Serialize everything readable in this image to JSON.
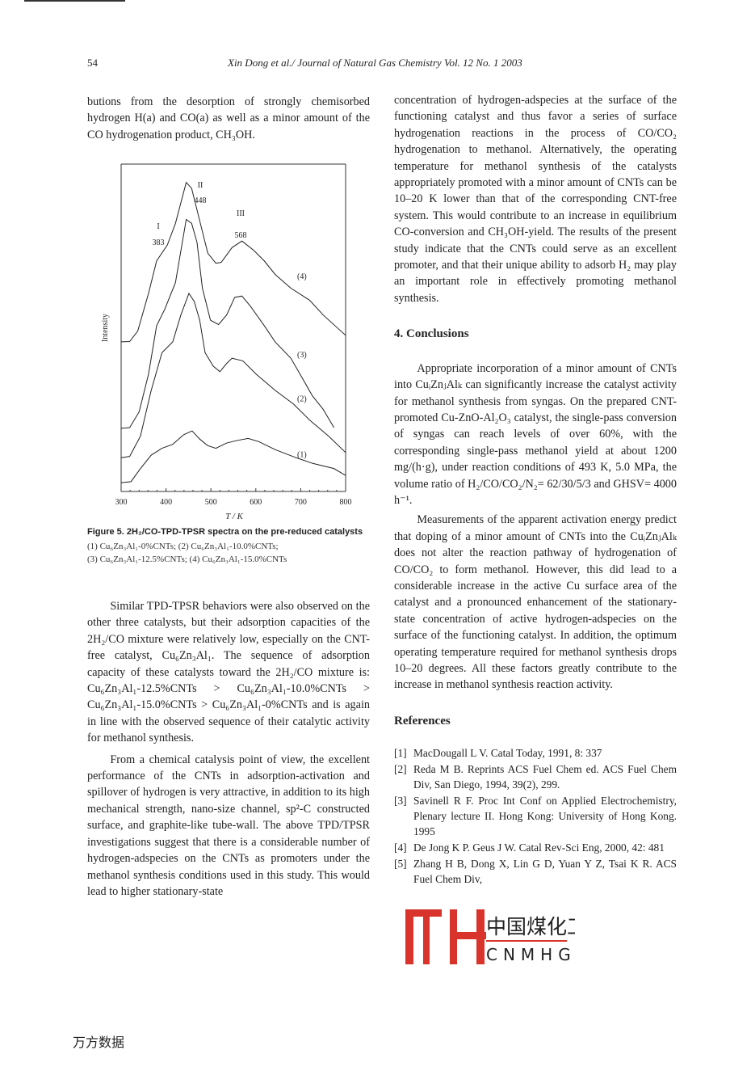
{
  "header": {
    "page_number": "54",
    "running_title": "Xin Dong et al./ Journal of Natural Gas Chemistry Vol. 12 No. 1 2003"
  },
  "left": {
    "p0": "butions from the desorption of strongly chemisorbed hydrogen H(a) and CO(a) as well as a minor amount of the CO hydrogenation product, CH₃OH.",
    "figure_caption": "Figure 5. 2H₂/CO-TPD-TPSR spectra on the pre-reduced catalysts",
    "figure_subcaption_1": "(1) Cu₆Zn₃Al₁-0%CNTs; (2) Cu₆Zn₃Al₁-10.0%CNTs;",
    "figure_subcaption_2": "(3) Cu₆Zn₃Al₁-12.5%CNTs; (4) Cu₆Zn₃Al₁-15.0%CNTs",
    "p1": "Similar TPD-TPSR behaviors were also observed on the other three catalysts, but their adsorption capacities of the 2H₂/CO mixture were relatively low, especially on the CNT-free catalyst, Cu₆Zn₃Al₁. The sequence of adsorption capacity of these catalysts toward the 2H₂/CO mixture is: Cu₆Zn₃Al₁-12.5%CNTs > Cu₆Zn₃Al₁-10.0%CNTs > Cu₆Zn₃Al₁-15.0%CNTs > Cu₆Zn₃Al₁-0%CNTs and is again in line with the observed sequence of their catalytic activity for methanol synthesis.",
    "p2": "From a chemical catalysis point of view, the excellent performance of the CNTs in adsorption-activation and spillover of hydrogen is very attractive, in addition to its high mechanical strength, nano-size channel, sp²-C constructed surface, and graphite-like tube-wall. The above TPD/TPSR investigations suggest that there is a considerable number of hydrogen-adspecies on the CNTs as promoters under the methanol synthesis conditions used in this study. This would lead to higher stationary-state"
  },
  "right": {
    "p0": "concentration of hydrogen-adspecies at the surface of the functioning catalyst and thus favor a series of surface hydrogenation reactions in the process of CO/CO₂ hydrogenation to methanol. Alternatively, the operating temperature for methanol synthesis of the catalysts appropriately promoted with a minor amount of CNTs can be 10–20 K lower than that of the corresponding CNT-free system. This would contribute to an increase in equilibrium CO-conversion and CH₃OH-yield. The results of the present study indicate that the CNTs could serve as an excellent promoter, and that their unique ability to adsorb H₂ may play an important role in effectively promoting methanol synthesis.",
    "conclusions_heading": "4. Conclusions",
    "c1": "Appropriate incorporation of a minor amount of CNTs into CuᵢZnⱼAlₖ can significantly increase the catalyst activity for methanol synthesis from syngas. On the prepared CNT-promoted Cu-ZnO-Al₂O₃ catalyst, the single-pass conversion of syngas can reach levels of over 60%, with the corresponding single-pass methanol yield at about 1200 mg/(h·g), under reaction conditions of 493 K, 5.0 MPa, the volume ratio of H₂/CO/CO₂/N₂= 62/30/5/3 and GHSV= 4000 h⁻¹.",
    "c2": "Measurements of the apparent activation energy predict that doping of a minor amount of CNTs into the CuᵢZnⱼAlₖ does not alter the reaction pathway of hydrogenation of CO/CO₂ to form methanol. However, this did lead to a considerable increase in the active Cu surface area of the catalyst and a pronounced enhancement of the stationary-state concentration of active hydrogen-adspecies on the surface of the functioning catalyst. In addition, the optimum operating temperature required for methanol synthesis drops 10–20 degrees. All these factors greatly contribute to the increase in methanol synthesis reaction activity.",
    "references_heading": "References",
    "references": [
      {
        "n": "[1]",
        "text": "MacDougall L V. Catal Today, 1991, 8: 337"
      },
      {
        "n": "[2]",
        "text": "Reda M B. Reprints ACS Fuel Chem ed. ACS Fuel Chem Div, San Diego, 1994, 39(2), 299."
      },
      {
        "n": "[3]",
        "text": "Savinell R F. Proc Int Conf on Applied Electrochemistry, Plenary lecture II. Hong Kong: University of Hong Kong. 1995"
      },
      {
        "n": "[4]",
        "text": "De Jong K P. Geus J W. Catal Rev-Sci Eng, 2000, 42: 481"
      },
      {
        "n": "[5]",
        "text": "Zhang H B, Dong X, Lin G D, Yuan Y Z, Tsai K R. ACS Fuel Chem Div,"
      }
    ]
  },
  "watermark": {
    "text_cn": "中国煤化工",
    "text_en": "CNMHG",
    "color": "#d9342b"
  },
  "footer": {
    "text": "万方数据"
  },
  "chart_data": {
    "type": "line",
    "xlabel": "T / K",
    "ylabel": "Intensity",
    "xlim": [
      300,
      800
    ],
    "xticks": [
      "300",
      "400",
      "500",
      "600",
      "700",
      "800"
    ],
    "y_units": "arbitrary (no ticks)",
    "peak_labels": [
      {
        "roman": "I",
        "value": "383"
      },
      {
        "roman": "II",
        "value": "448"
      },
      {
        "roman": "III",
        "value": "568"
      }
    ],
    "series": [
      {
        "name": "(1)",
        "x": [
          300,
          322,
          343,
          367,
          391,
          415,
          439,
          458,
          475,
          493,
          511,
          535,
          559,
          583,
          607,
          643,
          690,
          726,
          774,
          800
        ],
        "y": [
          2.7,
          3.0,
          7.0,
          11.1,
          13.2,
          14.4,
          17.3,
          18.5,
          16.0,
          14.0,
          13.2,
          14.8,
          15.6,
          16.2,
          15.2,
          12.8,
          10.3,
          8.6,
          7.0,
          4.9
        ]
      },
      {
        "name": "(2)",
        "x": [
          300,
          319,
          343,
          367,
          391,
          415,
          433,
          451,
          463,
          475,
          487,
          505,
          520,
          535,
          547,
          571,
          601,
          643,
          684,
          720,
          762,
          800
        ],
        "y": [
          10.3,
          10.7,
          16.9,
          30.9,
          42.4,
          45.7,
          53.9,
          60.5,
          58.0,
          52.3,
          42.4,
          38.3,
          36.6,
          39.1,
          40.7,
          39.9,
          35.8,
          30.9,
          26.7,
          21.8,
          16.9,
          11.9
        ]
      },
      {
        "name": "(3)",
        "x": [
          300,
          319,
          340,
          361,
          379,
          397,
          421,
          445,
          457,
          469,
          481,
          499,
          517,
          535,
          553,
          569,
          589,
          619,
          643,
          678,
          702,
          726,
          750,
          774
        ],
        "y": [
          19.3,
          19.5,
          24.3,
          35.8,
          50.6,
          55.6,
          63.8,
          83.1,
          81.9,
          76.1,
          62.1,
          52.3,
          51.0,
          53.9,
          59.3,
          59.7,
          56.4,
          50.6,
          45.7,
          40.7,
          35.0,
          29.2,
          25.1,
          19.5
        ]
      },
      {
        "name": "(4)",
        "x": [
          300,
          319,
          337,
          361,
          379,
          403,
          421,
          445,
          457,
          475,
          493,
          511,
          523,
          547,
          569,
          595,
          619,
          643,
          678,
          720,
          750,
          800
        ],
        "y": [
          45.7,
          45.8,
          49.0,
          60.5,
          70.4,
          75.3,
          81.9,
          94.4,
          92.6,
          82.7,
          72.8,
          69.7,
          70.0,
          74.5,
          76.5,
          73.7,
          70.4,
          66.3,
          62.1,
          58.4,
          53.9,
          47.7
        ]
      }
    ]
  }
}
